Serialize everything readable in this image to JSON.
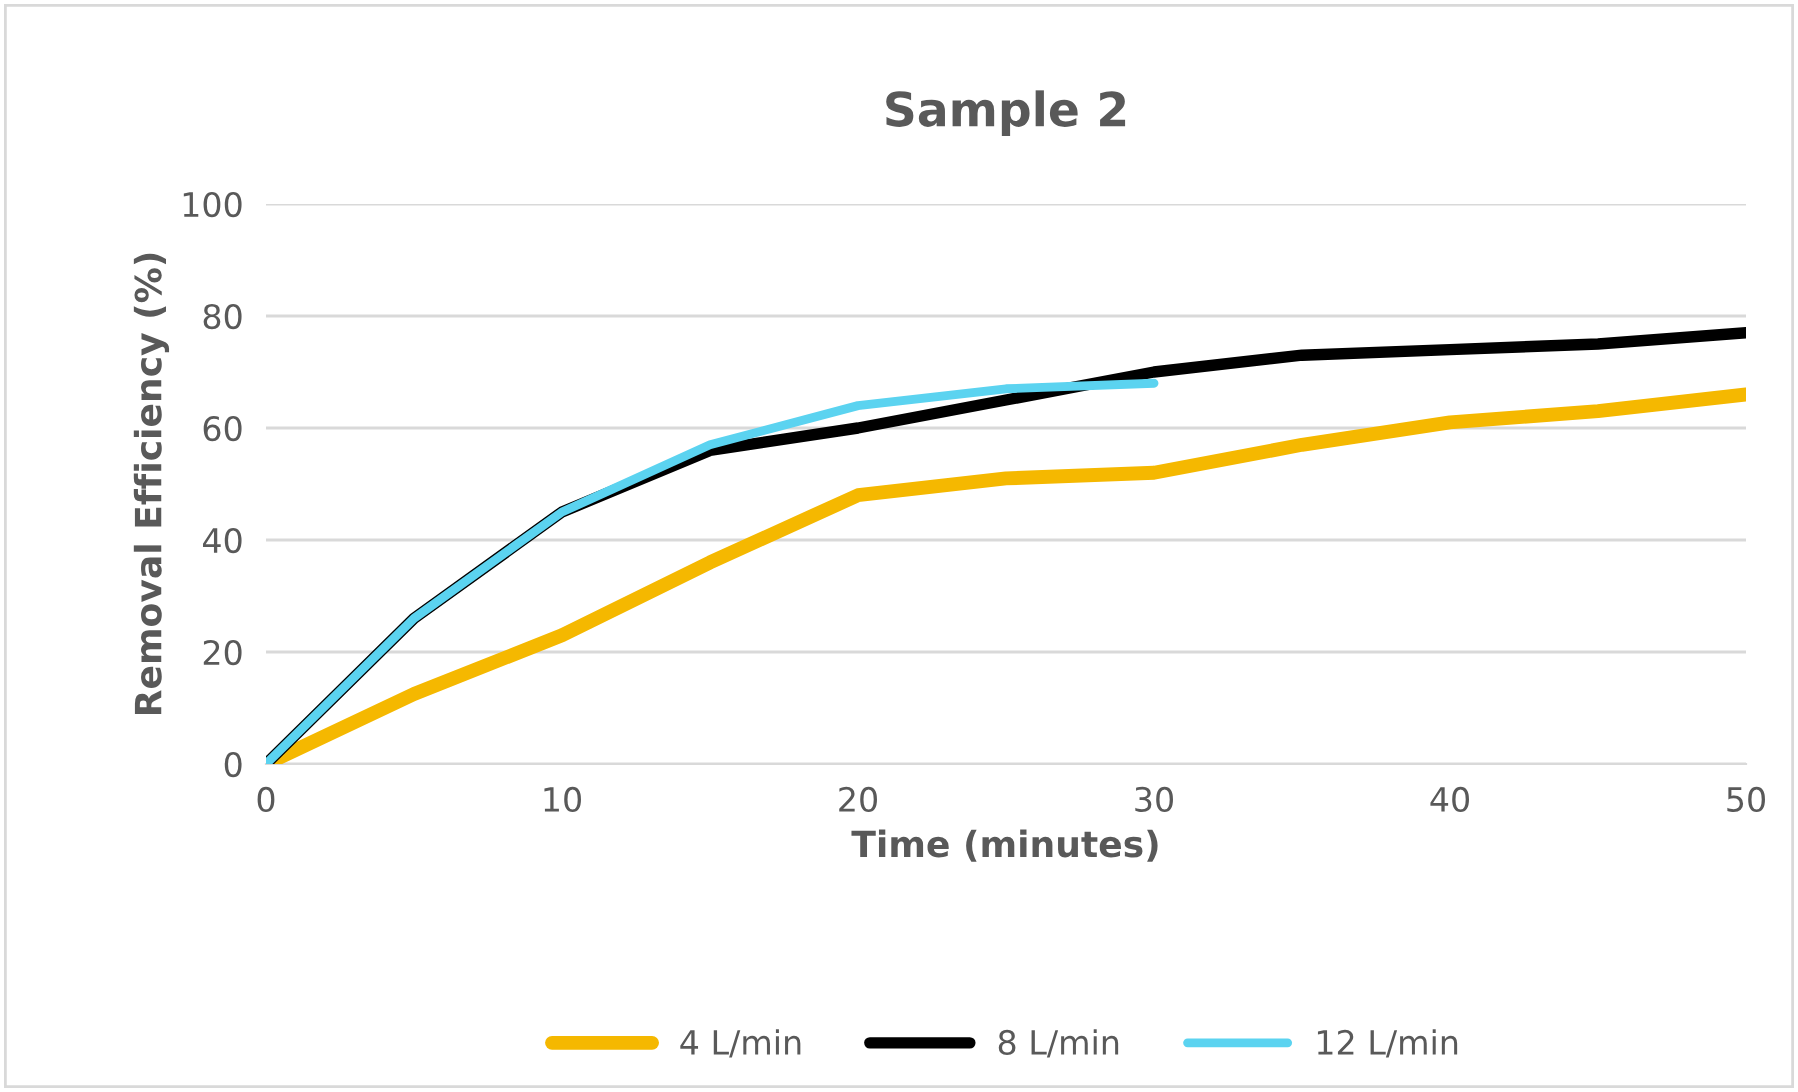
{
  "chart_data": {
    "type": "line",
    "title": "Sample 2",
    "xlabel": "Time (minutes)",
    "ylabel": "Removal Efficiency (%)",
    "x": [
      0,
      5,
      10,
      15,
      20,
      25,
      30,
      35,
      40,
      45,
      50
    ],
    "series": [
      {
        "name": "4 L/min",
        "color": "#f5b800",
        "values": [
          0,
          12.5,
          23,
          36,
          48,
          51,
          52,
          57,
          61,
          63,
          66
        ]
      },
      {
        "name": "8 L/min",
        "color": "#000000",
        "values": [
          0,
          26,
          45,
          56,
          60,
          65,
          70,
          73,
          74,
          75,
          77
        ]
      },
      {
        "name": "12 L/min",
        "color": "#5bd3f0",
        "x": [
          0,
          5,
          10,
          15,
          20,
          25,
          30
        ],
        "values": [
          0,
          26,
          45,
          57,
          64,
          67,
          68
        ]
      }
    ],
    "xlim": [
      0,
      50
    ],
    "xticks": [
      0,
      10,
      20,
      30,
      40,
      50
    ],
    "ylim": [
      0,
      100
    ],
    "yticks": [
      0,
      20,
      40,
      60,
      80,
      100
    ],
    "grid": "y",
    "legend": "bottom",
    "marker": "none",
    "line_style": "solid"
  }
}
